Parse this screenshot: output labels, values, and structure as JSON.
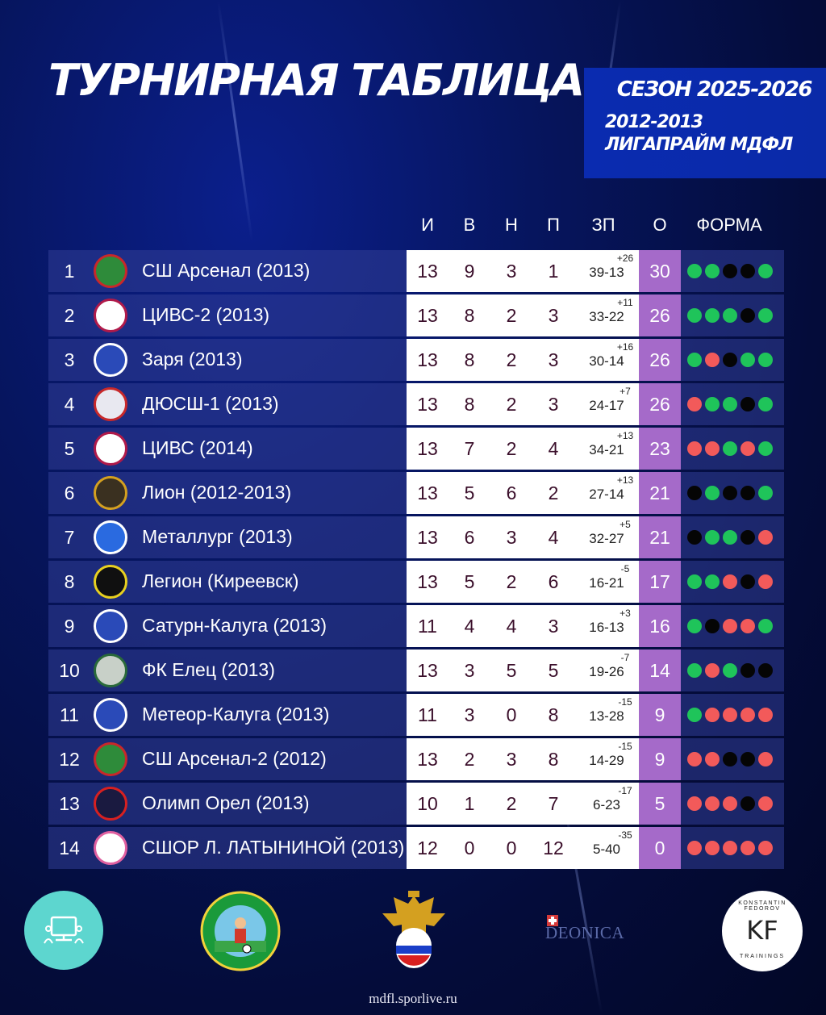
{
  "title": "ТУРНИРНАЯ ТАБЛИЦА",
  "season": "СЕЗОН 2025-2026",
  "age_group": "2012-2013",
  "league": "ЛИГАПРАЙМ МДФЛ",
  "columns": {
    "games": "И",
    "wins": "В",
    "draws": "Н",
    "losses": "П",
    "goals": "ЗП",
    "points": "О",
    "form": "ФОРМА"
  },
  "rows": [
    {
      "pos": "1",
      "team": "СШ Арсенал (2013)",
      "logo": "arsenal-crest",
      "games": "13",
      "wins": "9",
      "draws": "3",
      "losses": "1",
      "gd": "+26",
      "goals": "39-13",
      "points": "30",
      "form": [
        "W",
        "W",
        "D",
        "D",
        "W"
      ]
    },
    {
      "pos": "2",
      "team": "ЦИВС-2 (2013)",
      "logo": "tsivs-crest",
      "games": "13",
      "wins": "8",
      "draws": "2",
      "losses": "3",
      "gd": "+11",
      "goals": "33-22",
      "points": "26",
      "form": [
        "W",
        "W",
        "W",
        "D",
        "W"
      ]
    },
    {
      "pos": "3",
      "team": "Заря (2013)",
      "logo": "zarya-crest",
      "games": "13",
      "wins": "8",
      "draws": "2",
      "losses": "3",
      "gd": "+16",
      "goals": "30-14",
      "points": "26",
      "form": [
        "W",
        "L",
        "D",
        "W",
        "W"
      ]
    },
    {
      "pos": "4",
      "team": "ДЮСШ-1 (2013)",
      "logo": "dyussh-crest",
      "games": "13",
      "wins": "8",
      "draws": "2",
      "losses": "3",
      "gd": "+7",
      "goals": "24-17",
      "points": "26",
      "form": [
        "L",
        "W",
        "W",
        "D",
        "W"
      ]
    },
    {
      "pos": "5",
      "team": "ЦИВС (2014)",
      "logo": "tsivs-crest",
      "games": "13",
      "wins": "7",
      "draws": "2",
      "losses": "4",
      "gd": "+13",
      "goals": "34-21",
      "points": "23",
      "form": [
        "L",
        "L",
        "W",
        "L",
        "W"
      ]
    },
    {
      "pos": "6",
      "team": "Лион (2012-2013)",
      "logo": "lion-crest",
      "games": "13",
      "wins": "5",
      "draws": "6",
      "losses": "2",
      "gd": "+13",
      "goals": "27-14",
      "points": "21",
      "form": [
        "D",
        "W",
        "D",
        "D",
        "W"
      ]
    },
    {
      "pos": "7",
      "team": "Металлург (2013)",
      "logo": "metallurg-crest",
      "games": "13",
      "wins": "6",
      "draws": "3",
      "losses": "4",
      "gd": "+5",
      "goals": "32-27",
      "points": "21",
      "form": [
        "D",
        "W",
        "W",
        "D",
        "L"
      ]
    },
    {
      "pos": "8",
      "team": "Легион (Киреевск)",
      "logo": "legion-crest",
      "games": "13",
      "wins": "5",
      "draws": "2",
      "losses": "6",
      "gd": "-5",
      "goals": "16-21",
      "points": "17",
      "form": [
        "W",
        "W",
        "L",
        "D",
        "L"
      ]
    },
    {
      "pos": "9",
      "team": "Сатурн-Калуга (2013)",
      "logo": "saturn-crest",
      "games": "11",
      "wins": "4",
      "draws": "4",
      "losses": "3",
      "gd": "+3",
      "goals": "16-13",
      "points": "16",
      "form": [
        "W",
        "D",
        "L",
        "L",
        "W"
      ]
    },
    {
      "pos": "10",
      "team": "ФК Елец (2013)",
      "logo": "elets-crest",
      "games": "13",
      "wins": "3",
      "draws": "5",
      "losses": "5",
      "gd": "-7",
      "goals": "19-26",
      "points": "14",
      "form": [
        "W",
        "L",
        "W",
        "D",
        "D"
      ]
    },
    {
      "pos": "11",
      "team": "Метеор-Калуга (2013)",
      "logo": "meteor-crest",
      "games": "11",
      "wins": "3",
      "draws": "0",
      "losses": "8",
      "gd": "-15",
      "goals": "13-28",
      "points": "9",
      "form": [
        "W",
        "L",
        "L",
        "L",
        "L"
      ]
    },
    {
      "pos": "12",
      "team": "СШ Арсенал-2 (2012)",
      "logo": "arsenal-crest",
      "games": "13",
      "wins": "2",
      "draws": "3",
      "losses": "8",
      "gd": "-15",
      "goals": "14-29",
      "points": "9",
      "form": [
        "L",
        "L",
        "D",
        "D",
        "L"
      ]
    },
    {
      "pos": "13",
      "team": "Олимп Орел (2013)",
      "logo": "olimp-crest",
      "games": "10",
      "wins": "1",
      "draws": "2",
      "losses": "7",
      "gd": "-17",
      "goals": "6-23",
      "points": "5",
      "form": [
        "L",
        "L",
        "L",
        "D",
        "L"
      ]
    },
    {
      "pos": "14",
      "team": "СШОР Л. ЛАТЫНИНОЙ (2013)",
      "logo": "sshor-crest",
      "games": "12",
      "wins": "0",
      "draws": "0",
      "losses": "12",
      "gd": "-35",
      "goals": "5-40",
      "points": "0",
      "form": [
        "L",
        "L",
        "L",
        "L",
        "L"
      ]
    }
  ],
  "form_colors": {
    "W": "#1fc45a",
    "L": "#f25a5a",
    "D": "#050505"
  },
  "accent_colors": {
    "points_column": "#a56ac9",
    "season_box": "#0a2bb0"
  },
  "sponsors": {
    "deonica": "DEONICA",
    "kf_ring_top": "KONSTANTIN FEDOROV",
    "kf_ring_bottom": "TRAININGS",
    "kf_mark": "KF",
    "tula_ring": "ТУЛЬСКАЯ ОБЛАСТНАЯ ФЕДЕРАЦИЯ ФУТБОЛА"
  },
  "footer_url": "mdfl.sporlive.ru"
}
